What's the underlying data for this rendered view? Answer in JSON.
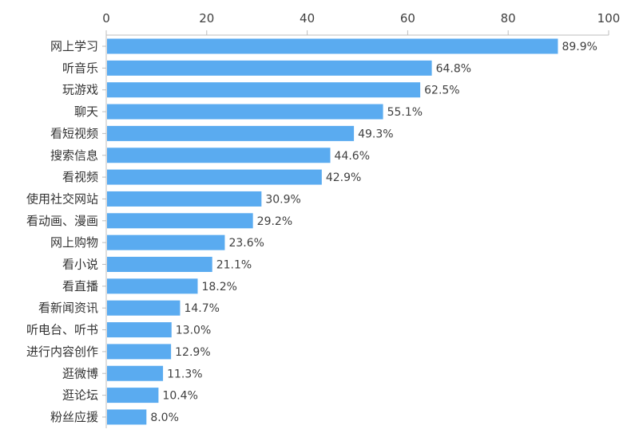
{
  "chart_data": {
    "type": "bar",
    "orientation": "horizontal",
    "categories": [
      "网上学习",
      "听音乐",
      "玩游戏",
      "聊天",
      "看短视频",
      "搜索信息",
      "看视频",
      "使用社交网站",
      "看动画、漫画",
      "网上购物",
      "看小说",
      "看直播",
      "看新闻资讯",
      "听电台、听书",
      "进行内容创作",
      "逛微博",
      "逛论坛",
      "粉丝应援"
    ],
    "values": [
      89.9,
      64.8,
      62.5,
      55.1,
      49.3,
      44.6,
      42.9,
      30.9,
      29.2,
      23.6,
      21.1,
      18.2,
      14.7,
      13.0,
      12.9,
      11.3,
      10.4,
      8.0
    ],
    "value_labels": [
      "89.9%",
      "64.8%",
      "62.5%",
      "55.1%",
      "49.3%",
      "44.6%",
      "42.9%",
      "30.9%",
      "29.2%",
      "23.6%",
      "21.1%",
      "18.2%",
      "14.7%",
      "13.0%",
      "12.9%",
      "11.3%",
      "10.4%",
      "8.0%"
    ],
    "xlim": [
      0,
      100
    ],
    "x_ticks": [
      "0",
      "20",
      "40",
      "60",
      "80",
      "100"
    ],
    "x_axis_position": "top",
    "bar_color": "#5aabf0",
    "grid": false,
    "title": "",
    "xlabel": "",
    "ylabel": ""
  }
}
